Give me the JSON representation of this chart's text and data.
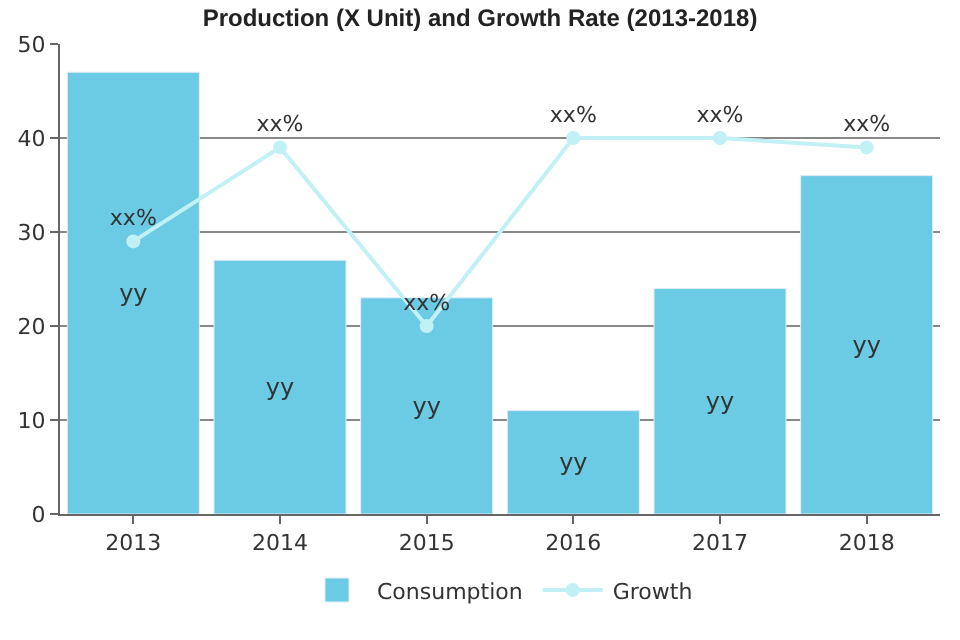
{
  "chart_data": {
    "type": "bar",
    "title": "Production (X Unit) and Growth Rate (2013-2018)",
    "categories": [
      "2013",
      "2014",
      "2015",
      "2016",
      "2017",
      "2018"
    ],
    "series": [
      {
        "name": "Consumption",
        "color": "#6ccbe4",
        "values": [
          47,
          27,
          23,
          11,
          24,
          36
        ],
        "value_labels": [
          "yy",
          "yy",
          "yy",
          "yy",
          "yy",
          "yy"
        ]
      },
      {
        "name": "Growth",
        "type": "line",
        "color": "#c2f1f5",
        "values": [
          29,
          39,
          20,
          40,
          40,
          39
        ],
        "value_labels": [
          "xx%",
          "xx%",
          "xx%",
          "xx%",
          "xx%",
          "xx%"
        ],
        "marker": "circle"
      }
    ],
    "ylim": [
      0,
      50
    ],
    "yticks": [
      0,
      10,
      20,
      30,
      40,
      50
    ],
    "grid": "y",
    "legend": "bottom"
  }
}
